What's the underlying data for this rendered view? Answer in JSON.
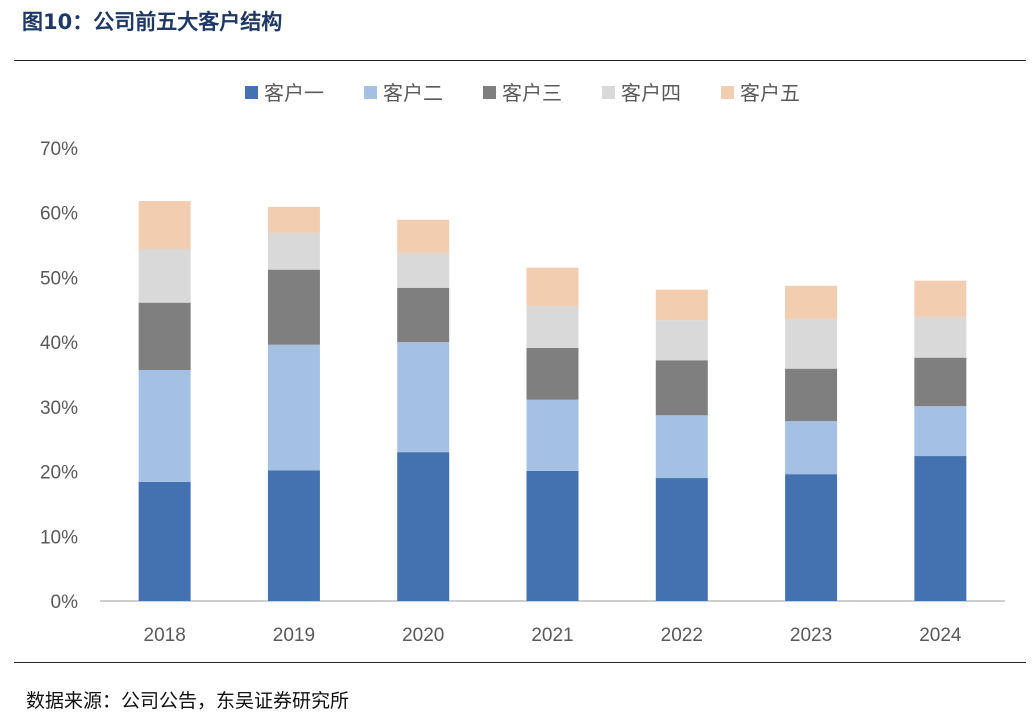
{
  "title": "图10：公司前五大客户结构",
  "source": "数据来源：公司公告，东吴证券研究所",
  "chart_data": {
    "type": "bar",
    "stacked": true,
    "categories": [
      "2018",
      "2019",
      "2020",
      "2021",
      "2022",
      "2023",
      "2024"
    ],
    "series": [
      {
        "name": "客户一",
        "color": "#4472b0",
        "values": [
          18.4,
          20.2,
          23.0,
          20.1,
          19.0,
          19.6,
          22.4
        ]
      },
      {
        "name": "客户二",
        "color": "#a4c1e3",
        "values": [
          17.3,
          19.4,
          17.0,
          11.0,
          9.7,
          8.2,
          7.7
        ]
      },
      {
        "name": "客户三",
        "color": "#7f7f7f",
        "values": [
          10.4,
          11.6,
          8.4,
          8.0,
          8.5,
          8.1,
          7.5
        ]
      },
      {
        "name": "客户四",
        "color": "#d9d9d9",
        "values": [
          8.3,
          5.7,
          5.4,
          6.5,
          6.2,
          7.7,
          6.3
        ]
      },
      {
        "name": "客户五",
        "color": "#f2cdb0",
        "values": [
          7.4,
          4.0,
          5.1,
          5.9,
          4.7,
          5.1,
          5.6
        ]
      }
    ],
    "yticks": [
      "0%",
      "10%",
      "20%",
      "30%",
      "40%",
      "50%",
      "60%",
      "70%"
    ],
    "ylim": [
      0,
      70
    ],
    "xlabel": "",
    "ylabel": "",
    "legend": "top-center",
    "grid": false
  }
}
